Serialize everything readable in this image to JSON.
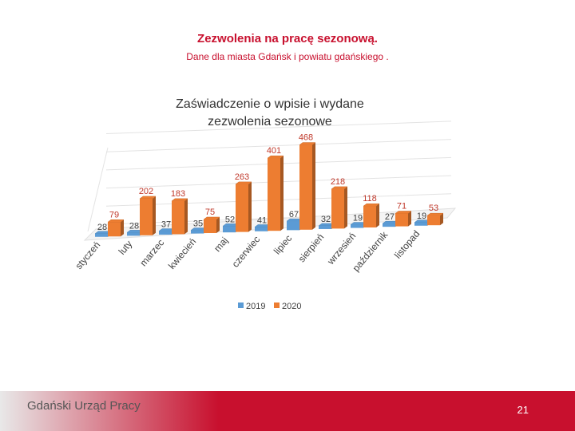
{
  "header": {
    "title": "Zezwolenia na pracę sezonową.",
    "subtitle": "Dane dla miasta Gdańsk i powiatu gdańskiego ."
  },
  "chart_data": {
    "type": "bar",
    "title": "Zaświadczenie o wpisie i wydane zezwolenia sezonowe",
    "categories": [
      "styczeń",
      "luty",
      "marzec",
      "kwiecień",
      "maj",
      "czerwiec",
      "lipiec",
      "sierpień",
      "wrzesień",
      "październik",
      "listopad"
    ],
    "series": [
      {
        "name": "2019",
        "color": "#5b9bd5",
        "values": [
          28,
          28,
          37,
          35,
          52,
          41,
          67,
          32,
          19,
          27,
          19
        ]
      },
      {
        "name": "2020",
        "color": "#ed7d31",
        "values": [
          79,
          202,
          183,
          75,
          263,
          401,
          468,
          218,
          118,
          71,
          53
        ]
      }
    ],
    "ylim": [
      0,
      500
    ],
    "grid": true,
    "legend": "bottom"
  },
  "footer": {
    "org": "Gdański Urząd Pracy",
    "page": "21"
  },
  "colors": {
    "title_red": "#c8102e",
    "footer_red": "#c8102e"
  }
}
